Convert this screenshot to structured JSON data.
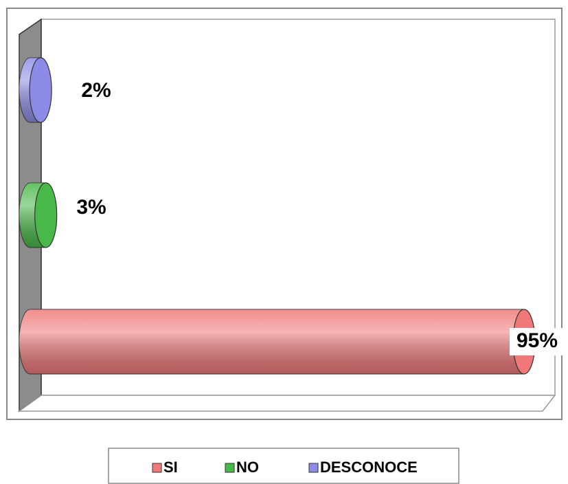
{
  "chart_data": {
    "type": "bar3d",
    "series": [
      {
        "name": "SI",
        "color": "#f07878",
        "values": [
          95
        ],
        "value_labels": [
          "95%"
        ]
      },
      {
        "name": "NO",
        "color": "#48b848",
        "values": [
          3
        ],
        "value_labels": [
          "3%"
        ]
      },
      {
        "name": "DESCONOCE",
        "color": "#8c8ce8",
        "values": [
          2
        ],
        "value_labels": [
          "2%"
        ]
      }
    ],
    "legend": "bottom"
  }
}
